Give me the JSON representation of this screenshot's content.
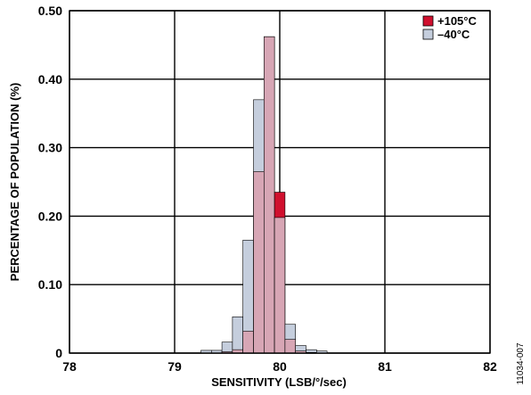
{
  "chart_data": {
    "type": "bar",
    "title": "",
    "xlabel": "SENSITIVITY (LSB/°/sec)",
    "ylabel": "PERCENTAGE OF POPULATION (%)",
    "xlim": [
      78,
      82
    ],
    "ylim": [
      0,
      0.5
    ],
    "grid": true,
    "legend_position": "top-right",
    "x_ticks": [
      "78",
      "79",
      "80",
      "81",
      "82"
    ],
    "y_ticks": [
      "0",
      "0.10",
      "0.20",
      "0.30",
      "0.40",
      "0.50"
    ],
    "bin_width": 0.1,
    "bin_centers": [
      79.3,
      79.4,
      79.5,
      79.6,
      79.7,
      79.8,
      79.9,
      80.0,
      80.1,
      80.2,
      80.3,
      80.4,
      80.5,
      80.6,
      80.7
    ],
    "series": [
      {
        "name": "+105°C",
        "color": "#d0102e",
        "values": [
          0,
          0,
          0.002,
          0.005,
          0.032,
          0.265,
          0.462,
          0.235,
          0.02,
          0.003,
          0.001,
          0,
          0,
          0,
          0
        ]
      },
      {
        "name": "–40°C",
        "color": "#c5cedd",
        "values": [
          0.004,
          0.004,
          0.016,
          0.053,
          0.165,
          0.37,
          0.462,
          0.198,
          0.042,
          0.011,
          0.005,
          0.003,
          0,
          0,
          0
        ]
      }
    ],
    "overlap_color": "#d7a6b5"
  },
  "figure_id": "11034-007"
}
